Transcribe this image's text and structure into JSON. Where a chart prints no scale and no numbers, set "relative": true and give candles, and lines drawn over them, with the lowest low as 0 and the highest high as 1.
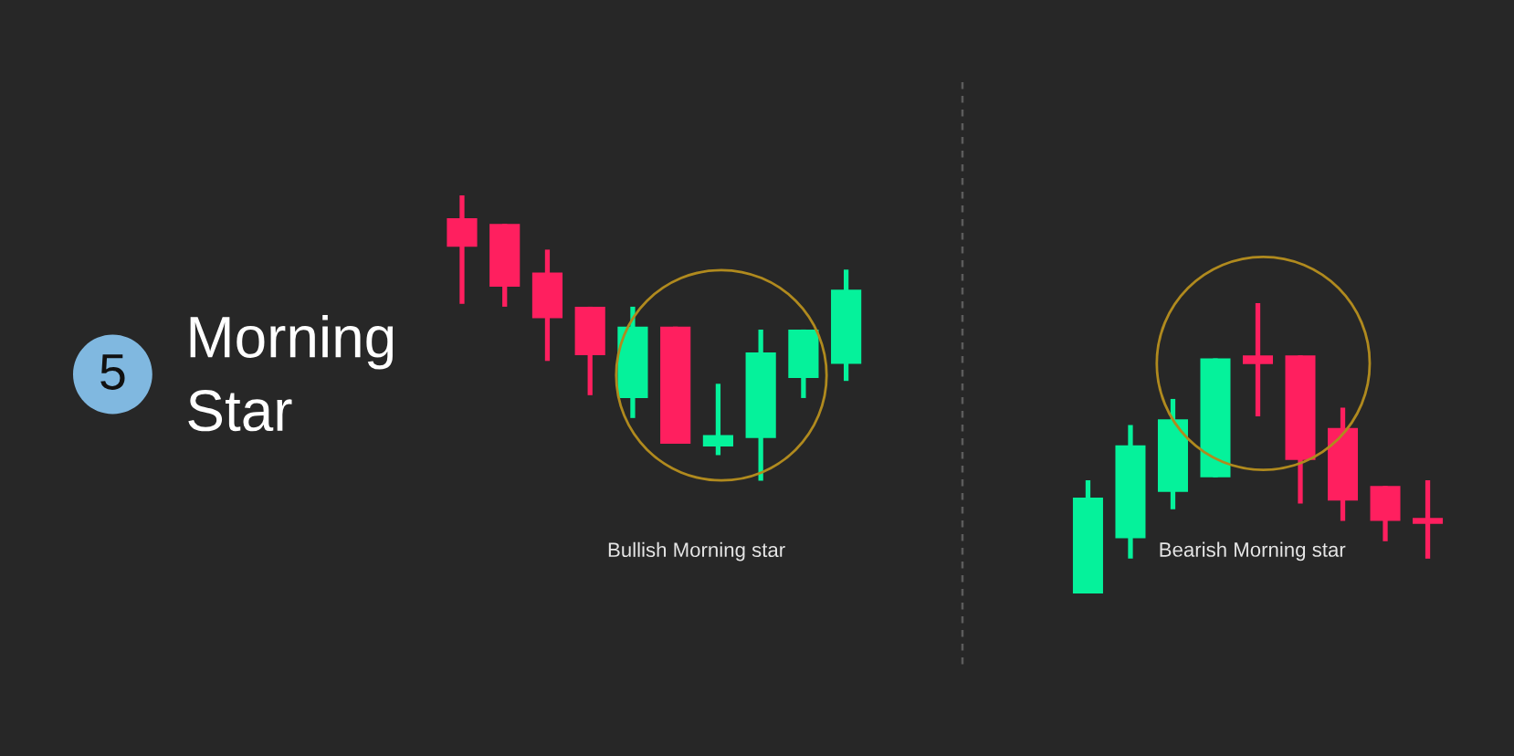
{
  "chart_data": [
    {
      "type": "other",
      "title": "Morning Star",
      "annotations": [
        "5"
      ]
    },
    {
      "type": "candlestick",
      "relative": true,
      "categories": [
        null,
        null,
        null,
        null,
        null,
        null,
        null,
        null,
        null,
        null
      ],
      "ohlc": [
        [
          0.92,
          1,
          0.62,
          0.82
        ],
        [
          0.9,
          0.9,
          0.61,
          0.68
        ],
        [
          0.73,
          0.81,
          0.42,
          0.57
        ],
        [
          0.61,
          0.61,
          0.3,
          0.44
        ],
        [
          0.29,
          0.61,
          0.22,
          0.54
        ],
        [
          0.54,
          0.54,
          0.13,
          0.13
        ],
        [
          0.12,
          0.34,
          0.09,
          0.16
        ],
        [
          0.15,
          0.53,
          0,
          0.45
        ],
        [
          0.36,
          0.53,
          0.29,
          0.53
        ],
        [
          0.41,
          0.74,
          0.35,
          0.67
        ]
      ],
      "colors": [
        "#ff1f5f",
        "#ff1f5f",
        "#ff1f5f",
        "#ff1f5f",
        "#05f29b",
        "#ff1f5f",
        "#05f29b",
        "#05f29b",
        "#05f29b",
        "#05f29b"
      ],
      "annotations": [
        "Bullish Morning star"
      ]
    },
    {
      "type": "candlestick",
      "relative": true,
      "categories": [
        null,
        null,
        null,
        null,
        null,
        null,
        null,
        null,
        null
      ],
      "ohlc": [
        [
          0,
          0.39,
          0,
          0.33
        ],
        [
          0.19,
          0.58,
          0.12,
          0.51
        ],
        [
          0.35,
          0.67,
          0.29,
          0.6
        ],
        [
          0.4,
          0.81,
          0.4,
          0.81
        ],
        [
          0.82,
          1,
          0.61,
          0.79
        ],
        [
          0.82,
          0.82,
          0.31,
          0.46
        ],
        [
          0.57,
          0.64,
          0.25,
          0.32
        ],
        [
          0.37,
          0.37,
          0.18,
          0.25
        ],
        [
          0.26,
          0.39,
          0.12,
          0.24
        ]
      ],
      "colors": [
        "#05f29b",
        "#05f29b",
        "#05f29b",
        "#05f29b",
        "#ff1f5f",
        "#ff1f5f",
        "#ff1f5f",
        "#ff1f5f",
        "#ff1f5f"
      ],
      "annotations": [
        "Bearish Morning star"
      ]
    }
  ]
}
